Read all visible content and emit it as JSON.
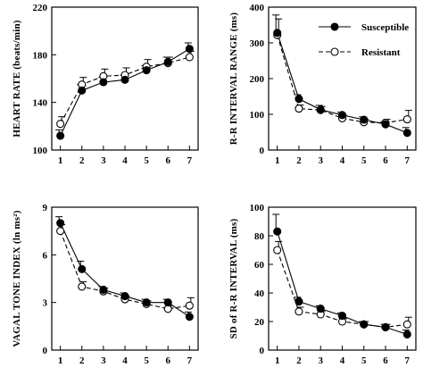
{
  "legend": {
    "position": "top-right of R-R interval range panel",
    "entries": [
      {
        "name": "Susceptible",
        "marker": "filled-circle",
        "line": "solid"
      },
      {
        "name": "Resistant",
        "marker": "open-circle",
        "line": "dashed"
      }
    ]
  },
  "chart_data": [
    {
      "type": "line",
      "panel": "top-left",
      "xlabel": "",
      "ylabel": "HEART RATE (beats/min)",
      "x": [
        1,
        2,
        3,
        4,
        5,
        6,
        7
      ],
      "xticks": [
        "1",
        "2",
        "3",
        "4",
        "5",
        "6",
        "7"
      ],
      "ylim": [
        100,
        220
      ],
      "yticks": [
        "100",
        "140",
        "180",
        "220"
      ],
      "grid": false,
      "series": [
        {
          "name": "Susceptible",
          "values": [
            112,
            150,
            157,
            159,
            167,
            174,
            185
          ],
          "err": [
            5,
            5,
            4,
            4,
            4,
            4,
            5
          ]
        },
        {
          "name": "Resistant",
          "values": [
            122,
            155,
            162,
            163,
            170,
            173,
            178
          ],
          "err": [
            6,
            6,
            6,
            6,
            6,
            5,
            5
          ]
        }
      ]
    },
    {
      "type": "line",
      "panel": "top-right",
      "xlabel": "",
      "ylabel": "R-R INTERVAL RANGE (ms)",
      "x": [
        1,
        2,
        3,
        4,
        5,
        6,
        7
      ],
      "xticks": [
        "1",
        "2",
        "3",
        "4",
        "5",
        "6",
        "7"
      ],
      "ylim": [
        0,
        400
      ],
      "yticks": [
        "0",
        "100",
        "200",
        "300",
        "400"
      ],
      "grid": false,
      "series": [
        {
          "name": "Susceptible",
          "values": [
            328,
            143,
            113,
            98,
            85,
            72,
            48
          ],
          "err": [
            50,
            12,
            12,
            8,
            8,
            8,
            15
          ]
        },
        {
          "name": "Resistant",
          "values": [
            322,
            116,
            112,
            89,
            78,
            76,
            86
          ],
          "err": [
            45,
            10,
            10,
            8,
            8,
            10,
            25
          ]
        }
      ]
    },
    {
      "type": "line",
      "panel": "bottom-left",
      "xlabel": "EXERCISE LEVEL",
      "ylabel": "VAGAL TONE INDEX (ln ms²)",
      "x": [
        1,
        2,
        3,
        4,
        5,
        6,
        7
      ],
      "xticks": [
        "1",
        "2",
        "3",
        "4",
        "5",
        "6",
        "7"
      ],
      "ylim": [
        0,
        9
      ],
      "yticks": [
        "0",
        "3",
        "6",
        "9"
      ],
      "grid": false,
      "series": [
        {
          "name": "Susceptible",
          "values": [
            8.0,
            5.1,
            3.8,
            3.4,
            3.0,
            3.0,
            2.1
          ],
          "err": [
            0.4,
            0.5,
            0.2,
            0.2,
            0.2,
            0.2,
            0.3
          ]
        },
        {
          "name": "Resistant",
          "values": [
            7.5,
            4.0,
            3.7,
            3.2,
            2.9,
            2.6,
            2.8
          ],
          "err": [
            0.4,
            0.3,
            0.2,
            0.2,
            0.2,
            0.2,
            0.5
          ]
        }
      ]
    },
    {
      "type": "line",
      "panel": "bottom-right",
      "xlabel": "EXERCISE LEVEL",
      "ylabel": "SD of R-R INTERVAL (ms)",
      "x": [
        1,
        2,
        3,
        4,
        5,
        6,
        7
      ],
      "xticks": [
        "1",
        "2",
        "3",
        "4",
        "5",
        "6",
        "7"
      ],
      "ylim": [
        0,
        100
      ],
      "yticks": [
        "0",
        "20",
        "40",
        "60",
        "80",
        "100"
      ],
      "grid": false,
      "series": [
        {
          "name": "Susceptible",
          "values": [
            83,
            34,
            29,
            24,
            18,
            16,
            11
          ],
          "err": [
            12,
            3,
            2,
            2,
            2,
            2,
            3
          ]
        },
        {
          "name": "Resistant",
          "values": [
            70,
            27,
            25,
            20,
            18,
            16,
            18
          ],
          "err": [
            6,
            3,
            2,
            2,
            2,
            2,
            5
          ]
        }
      ]
    }
  ]
}
